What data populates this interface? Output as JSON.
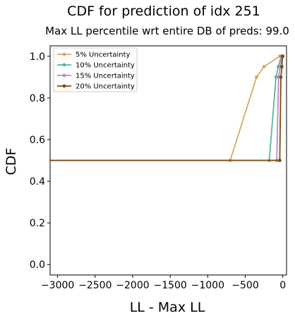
{
  "chart_data": {
    "type": "line",
    "title": "CDF for prediction of idx 251",
    "subtitle": "Max LL percentile wrt entire DB of preds: 99.0",
    "xlabel": "LL - Max LL",
    "ylabel": "CDF",
    "xlim": [
      -3100,
      50
    ],
    "ylim": [
      -0.05,
      1.05
    ],
    "xticks": [
      -3000,
      -2500,
      -2000,
      -1500,
      -1000,
      -500,
      0
    ],
    "xtick_labels": [
      "−3000",
      "−2500",
      "−2000",
      "−1500",
      "−1000",
      "−500",
      "0"
    ],
    "yticks": [
      0.0,
      0.2,
      0.4,
      0.6,
      0.8,
      1.0
    ],
    "ytick_labels": [
      "0.0",
      "0.2",
      "0.4",
      "0.6",
      "0.8",
      "1.0"
    ],
    "grid": false,
    "legend_position": "upper-left",
    "series": [
      {
        "name": "5% Uncertainty",
        "color": "#d4aa60",
        "x": [
          -3100,
          -700,
          -350,
          -250,
          -40,
          0
        ],
        "y": [
          0.5,
          0.5,
          0.9,
          0.95,
          1.0,
          1.0
        ]
      },
      {
        "name": "10% Uncertainty",
        "color": "#5bb3a8",
        "x": [
          -3100,
          -180,
          -90,
          -60,
          -20,
          0
        ],
        "y": [
          0.5,
          0.5,
          0.9,
          0.95,
          1.0,
          1.0
        ]
      },
      {
        "name": "15% Uncertainty",
        "color": "#b38ec4",
        "x": [
          -3100,
          -80,
          -55,
          -35,
          -15,
          0
        ],
        "y": [
          0.5,
          0.5,
          0.9,
          0.95,
          1.0,
          1.0
        ]
      },
      {
        "name": "20% Uncertainty",
        "color": "#7f4a10",
        "x": [
          -3100,
          -40,
          -25,
          -12,
          -5,
          0
        ],
        "y": [
          0.5,
          0.5,
          0.9,
          0.95,
          1.0,
          1.0
        ]
      }
    ]
  }
}
